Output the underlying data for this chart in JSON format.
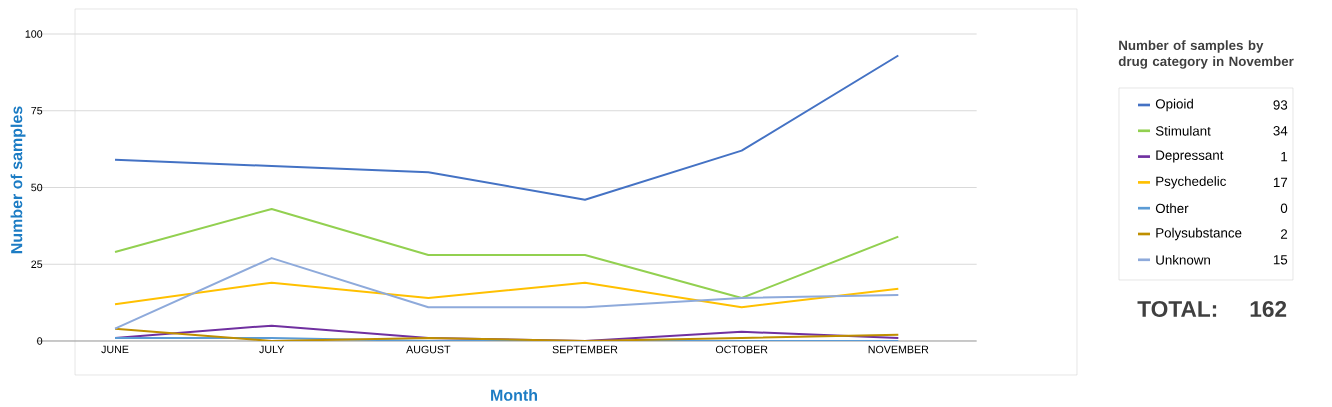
{
  "chart_data": {
    "type": "line",
    "xlabel": "Month",
    "ylabel": "Number of samples",
    "legend_title": "Number of samples by drug category in  November",
    "categories": [
      "JUNE",
      "JULY",
      "AUGUST",
      "SEPTEMBER",
      "OCTOBER",
      "NOVEMBER"
    ],
    "series": [
      {
        "name": "Opioid",
        "color": "#4472c4",
        "values": [
          59,
          57,
          55,
          46,
          62,
          93
        ]
      },
      {
        "name": "Stimulant",
        "color": "#92d050",
        "values": [
          29,
          43,
          28,
          28,
          14,
          34
        ]
      },
      {
        "name": "Depressant",
        "color": "#7030a0",
        "values": [
          1,
          5,
          1,
          0,
          3,
          1
        ]
      },
      {
        "name": "Psychedelic",
        "color": "#ffc000",
        "values": [
          12,
          19,
          14,
          19,
          11,
          17
        ]
      },
      {
        "name": "Other",
        "color": "#5b9bd5",
        "values": [
          1,
          1,
          0,
          0,
          0,
          0
        ]
      },
      {
        "name": "Polysubstance",
        "color": "#bf8f00",
        "values": [
          4,
          0,
          1,
          0,
          1,
          2
        ]
      },
      {
        "name": "Unknown",
        "color": "#8eaadb",
        "values": [
          4,
          27,
          11,
          11,
          14,
          15
        ]
      }
    ],
    "annotations": [
      "93",
      "34",
      "1",
      "17",
      "0",
      "2",
      "15",
      "TOTAL:",
      "162"
    ],
    "ylim": [
      0,
      100
    ],
    "yticks": [
      0,
      25,
      50,
      75,
      100
    ],
    "grid": "y",
    "legend": "right",
    "marker": "none",
    "line_style": "solid"
  }
}
